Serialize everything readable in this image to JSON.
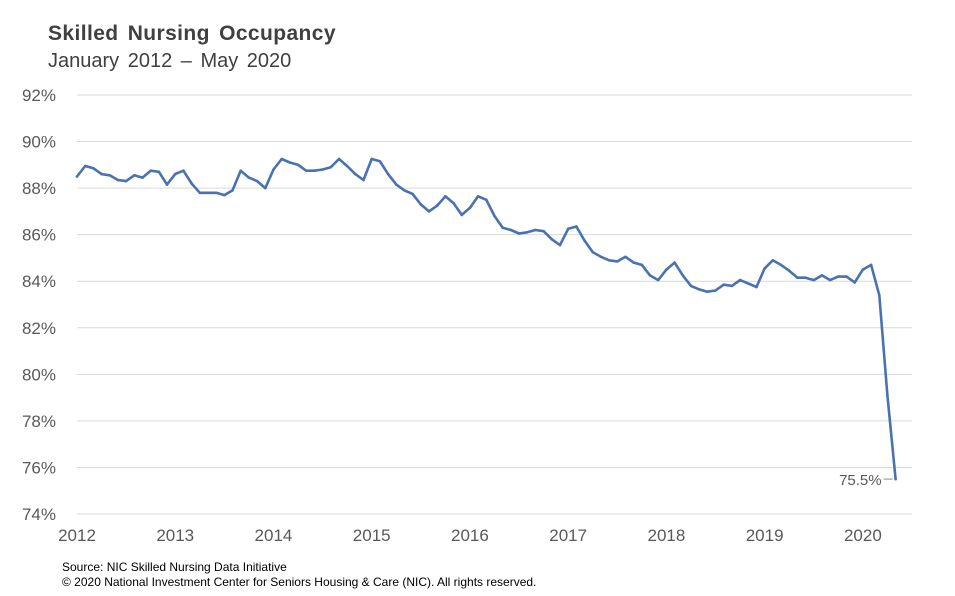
{
  "chart_data": {
    "type": "line",
    "title": "Skilled Nursing Occupancy",
    "subtitle": "January  2012 – May 2020",
    "xlabel": "",
    "ylabel": "",
    "ylim": [
      74,
      92
    ],
    "xlim": [
      2012.0,
      2020.5
    ],
    "y_ticks": [
      "74%",
      "76%",
      "78%",
      "80%",
      "82%",
      "84%",
      "86%",
      "88%",
      "90%",
      "92%"
    ],
    "x_ticks": [
      "2012",
      "2013",
      "2014",
      "2015",
      "2016",
      "2017",
      "2018",
      "2019",
      "2020"
    ],
    "grid": "horizontal",
    "line_color": "#4a72b0",
    "end_label": "75.5%",
    "series": [
      {
        "x_start": "2012-01",
        "frequency": "monthly",
        "values": [
          88.5,
          88.95,
          88.85,
          88.6,
          88.55,
          88.35,
          88.3,
          88.55,
          88.45,
          88.75,
          88.7,
          88.15,
          88.6,
          88.75,
          88.2,
          87.8,
          87.8,
          87.8,
          87.7,
          87.9,
          88.75,
          88.45,
          88.3,
          88.0,
          88.8,
          89.25,
          89.1,
          89.0,
          88.75,
          88.75,
          88.8,
          88.9,
          89.25,
          88.95,
          88.6,
          88.35,
          89.25,
          89.15,
          88.6,
          88.15,
          87.9,
          87.75,
          87.3,
          87.0,
          87.25,
          87.65,
          87.35,
          86.85,
          87.15,
          87.65,
          87.5,
          86.8,
          86.3,
          86.2,
          86.05,
          86.1,
          86.2,
          86.15,
          85.8,
          85.55,
          86.25,
          86.35,
          85.75,
          85.25,
          85.05,
          84.9,
          84.85,
          85.05,
          84.8,
          84.7,
          84.25,
          84.05,
          84.5,
          84.8,
          84.25,
          83.8,
          83.65,
          83.55,
          83.6,
          83.85,
          83.8,
          84.05,
          83.9,
          83.75,
          84.55,
          84.9,
          84.7,
          84.45,
          84.15,
          84.15,
          84.05,
          84.25,
          84.05,
          84.2,
          84.2,
          83.95,
          84.5,
          84.7,
          83.4,
          79.1,
          75.5
        ]
      }
    ]
  },
  "footer": {
    "source": "Source: NIC Skilled Nursing Data Initiative",
    "copyright": "© 2020 National Investment Center for Seniors Housing & Care (NIC).  All rights reserved."
  }
}
